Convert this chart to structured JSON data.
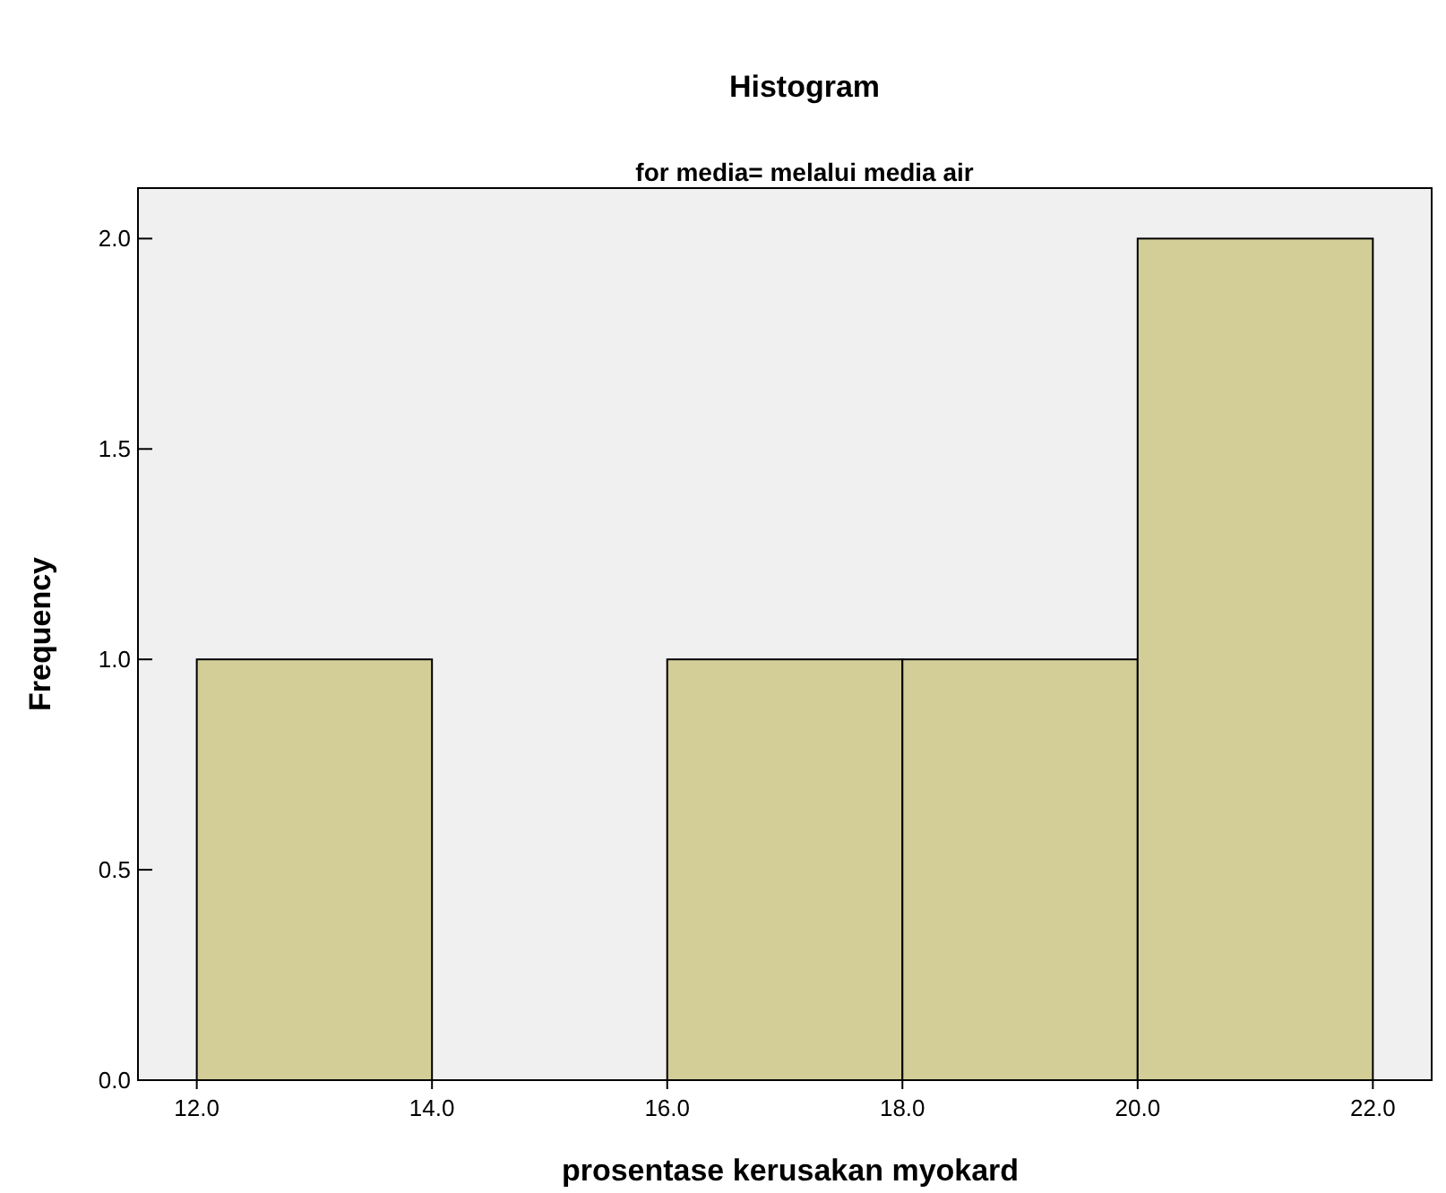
{
  "chart_data": {
    "type": "histogram",
    "title": "Histogram",
    "subtitle": "for media= melalui media air",
    "xlabel": "prosentase kerusakan myokard",
    "ylabel": "Frequency",
    "bins": [
      12,
      14,
      16,
      18,
      20,
      22
    ],
    "values": [
      1,
      0,
      1,
      1,
      2
    ],
    "color": "#d3ce97",
    "xlim": [
      11.5,
      22.5
    ],
    "xticks": [
      {
        "value": 12,
        "label": "12.0"
      },
      {
        "value": 14,
        "label": "14.0"
      },
      {
        "value": 16,
        "label": "16.0"
      },
      {
        "value": 18,
        "label": "18.0"
      },
      {
        "value": 20,
        "label": "20.0"
      },
      {
        "value": 22,
        "label": "22.0"
      }
    ],
    "ylim": [
      0,
      2.12
    ],
    "yticks": [
      {
        "value": 0,
        "label": "0.0"
      },
      {
        "value": 0.5,
        "label": "0.5"
      },
      {
        "value": 1,
        "label": "1.0"
      },
      {
        "value": 1.5,
        "label": "1.5"
      },
      {
        "value": 2,
        "label": "2.0"
      }
    ],
    "grid": false
  }
}
